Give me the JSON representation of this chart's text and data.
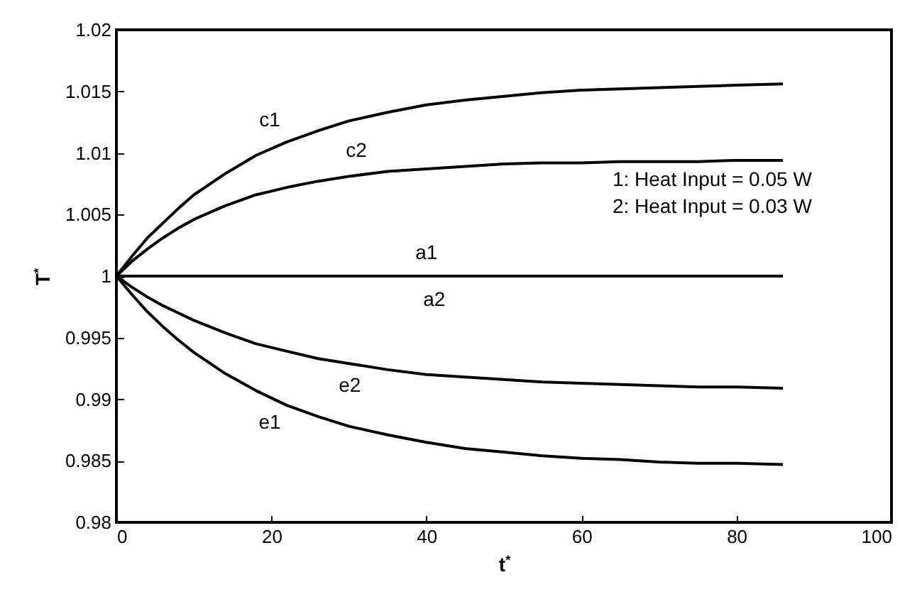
{
  "chart_data": {
    "type": "line",
    "xlabel": "t$^{*}$",
    "ylabel": "T$^{*}$",
    "xlim": [
      0,
      100
    ],
    "xticks": [
      0,
      20,
      40,
      60,
      80,
      100
    ],
    "ylim": [
      0.98,
      1.02
    ],
    "yticks": [
      0.98,
      0.985,
      0.99,
      0.995,
      1,
      1.005,
      1.01,
      1.015,
      1.02
    ],
    "grid": false,
    "marker": "none",
    "line_style": "solid",
    "annotations": [
      "1: Heat Input = 0.05 W",
      "2: Heat Input = 0.03 W",
      {
        "text": "a1",
        "x": 40,
        "y": 1
      },
      {
        "text": "a2",
        "x": 41,
        "y": 1
      }
    ],
    "x": [
      0,
      2,
      4,
      6,
      8,
      10,
      14,
      18,
      22,
      26,
      30,
      35,
      40,
      45,
      50,
      55,
      60,
      65,
      70,
      75,
      80,
      86
    ],
    "series": [
      {
        "name": "c1",
        "color": "#000000",
        "values": [
          1,
          1.0016,
          1.0031,
          1.0043,
          1.0055,
          1.0066,
          1.0083,
          1.0098,
          1.0109,
          1.0118,
          1.0126,
          1.0133,
          1.0139,
          1.0143,
          1.0146,
          1.0149,
          1.0151,
          1.0152,
          1.0153,
          1.0154,
          1.0155,
          1.0156
        ]
      },
      {
        "name": "c2",
        "color": "#000000",
        "values": [
          1,
          1.0012,
          1.0022,
          1.0031,
          1.0039,
          1.0046,
          1.0057,
          1.0066,
          1.0072,
          1.0077,
          1.0081,
          1.0085,
          1.0087,
          1.0089,
          1.0091,
          1.0092,
          1.0092,
          1.0093,
          1.0093,
          1.0093,
          1.0094,
          1.0094
        ]
      },
      {
        "color": "#000000",
        "x": [
          0,
          86
        ],
        "values": [
          1,
          1
        ]
      },
      {
        "name": "e2",
        "color": "#000000",
        "values": [
          1,
          0.9991,
          0.9983,
          0.9976,
          0.997,
          0.9964,
          0.9954,
          0.9945,
          0.9939,
          0.9933,
          0.9929,
          0.9924,
          0.992,
          0.9918,
          0.9916,
          0.9914,
          0.9913,
          0.9912,
          0.9911,
          0.991,
          0.991,
          0.9909
        ]
      },
      {
        "name": "e1",
        "color": "#000000",
        "values": [
          1,
          0.9985,
          0.9971,
          0.9959,
          0.9948,
          0.9938,
          0.9921,
          0.9907,
          0.9895,
          0.9886,
          0.9878,
          0.9871,
          0.9865,
          0.986,
          0.9857,
          0.9854,
          0.9852,
          0.9851,
          0.9849,
          0.9848,
          0.9848,
          0.9847
        ]
      }
    ]
  }
}
